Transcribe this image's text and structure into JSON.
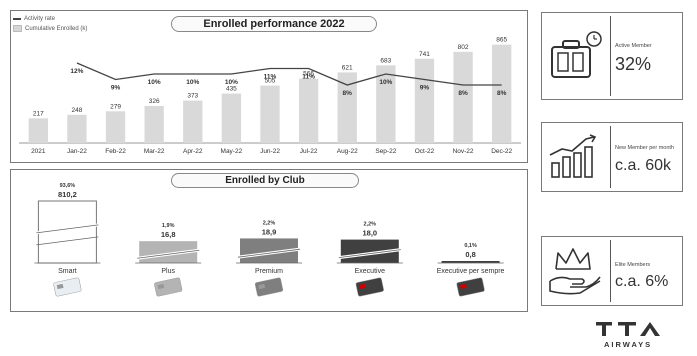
{
  "enrolled_performance": {
    "title": "Enrolled performance 2022",
    "legend": {
      "activity_rate": "Activity rate",
      "cumulative": "Cumulative Enrolled (k)"
    }
  },
  "enrolled_by_club": {
    "title": "Enrolled by Club"
  },
  "kpis": {
    "active_members": {
      "label": "Active Member",
      "value": "32%",
      "icon": "suitcase-clock-icon"
    },
    "new_members": {
      "label": "New Member per month",
      "value": "c.a. 60k",
      "icon": "growth-bars-icon"
    },
    "elite_members": {
      "label": "Elite Members",
      "value": "c.a. 6%",
      "icon": "crown-hand-icon"
    }
  },
  "brand": {
    "logo_text": "ITA",
    "logo_sub": "AIRWAYS"
  },
  "colors": {
    "bar": "#d9d9d9",
    "line": "#444444",
    "plus": "#b4b4b4",
    "premium": "#7f7f7f",
    "executive": "#404040"
  },
  "chart_data": [
    {
      "type": "bar",
      "title": "Enrolled performance 2022",
      "categories": [
        "2021",
        "Jan-22",
        "Feb-22",
        "Mar-22",
        "Apr-22",
        "May-22",
        "Jun-22",
        "Jul-22",
        "Aug-22",
        "Sep-22",
        "Oct-22",
        "Nov-22",
        "Dec-22"
      ],
      "series": [
        {
          "name": "Cumulative Enrolled (k)",
          "type": "bar",
          "values": [
            217,
            248,
            279,
            326,
            373,
            435,
            505,
            566,
            621,
            683,
            741,
            802,
            865
          ],
          "labels": [
            "217",
            "248",
            "279",
            "326",
            "373",
            "435",
            "505",
            "566",
            "621",
            "683",
            "741",
            "802",
            "865"
          ]
        },
        {
          "name": "Activity rate",
          "type": "line",
          "values": [
            null,
            12,
            9,
            10,
            10,
            10,
            11,
            11,
            8,
            10,
            9,
            8,
            8
          ],
          "labels": [
            "",
            "12%",
            "9%",
            "10%",
            "10%",
            "10%",
            "11%",
            "11%",
            "8%",
            "10%",
            "9%",
            "8%",
            "8%"
          ]
        }
      ],
      "ylim": [
        0,
        950
      ]
    },
    {
      "type": "bar",
      "title": "Enrolled by Club",
      "categories": [
        "Smart",
        "Plus",
        "Premium",
        "Executive",
        "Executive per sempre"
      ],
      "values": [
        810.2,
        16.8,
        18.9,
        18.0,
        0.8
      ],
      "value_labels": [
        "810,2",
        "16,8",
        "18,9",
        "18,0",
        "0,8"
      ],
      "share_labels": [
        "93,6%",
        "1,9%",
        "2,2%",
        "2,2%",
        "0,1%"
      ],
      "broken_axis": true
    }
  ]
}
